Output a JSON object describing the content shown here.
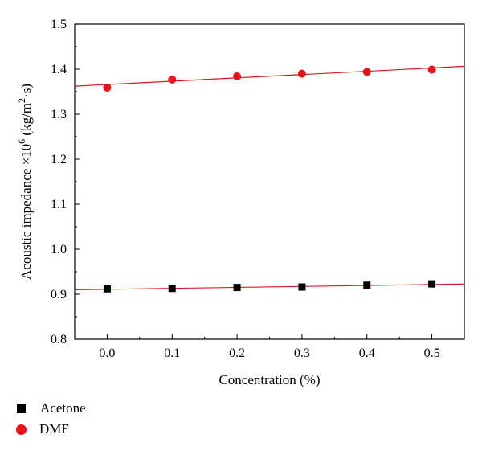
{
  "chart_data": {
    "type": "scatter",
    "title": "",
    "xlabel": "Concentration (%)",
    "ylabel": {
      "main": "Acoustic impedance ×10",
      "exp": "6",
      "unit_pre": " (kg/m",
      "unit_exp": "2",
      "unit_post": "·s)"
    },
    "xlim": [
      -0.05,
      0.55
    ],
    "ylim": [
      0.8,
      1.5
    ],
    "xticks": [
      "0.0",
      "0.1",
      "0.2",
      "0.3",
      "0.4",
      "0.5"
    ],
    "yticks": [
      "0.8",
      "0.9",
      "1.0",
      "1.1",
      "1.2",
      "1.3",
      "1.4",
      "1.5"
    ],
    "grid": false,
    "legend_position": "bottom-left",
    "series": [
      {
        "name": "Acetone",
        "marker": "square",
        "color": "#000000",
        "fit_color": "#e8141b",
        "x": [
          0.0,
          0.1,
          0.2,
          0.3,
          0.4,
          0.5
        ],
        "y": [
          0.912,
          0.913,
          0.915,
          0.916,
          0.92,
          0.923
        ],
        "fit": {
          "slope": 0.0213,
          "intercept": 0.911
        }
      },
      {
        "name": "DMF",
        "marker": "circle",
        "color": "#e8141b",
        "fit_color": "#e8141b",
        "x": [
          0.0,
          0.1,
          0.2,
          0.3,
          0.4,
          0.5
        ],
        "y": [
          1.359,
          1.377,
          1.384,
          1.39,
          1.394,
          1.399
        ],
        "fit": {
          "slope": 0.0735,
          "intercept": 1.366
        }
      }
    ]
  }
}
